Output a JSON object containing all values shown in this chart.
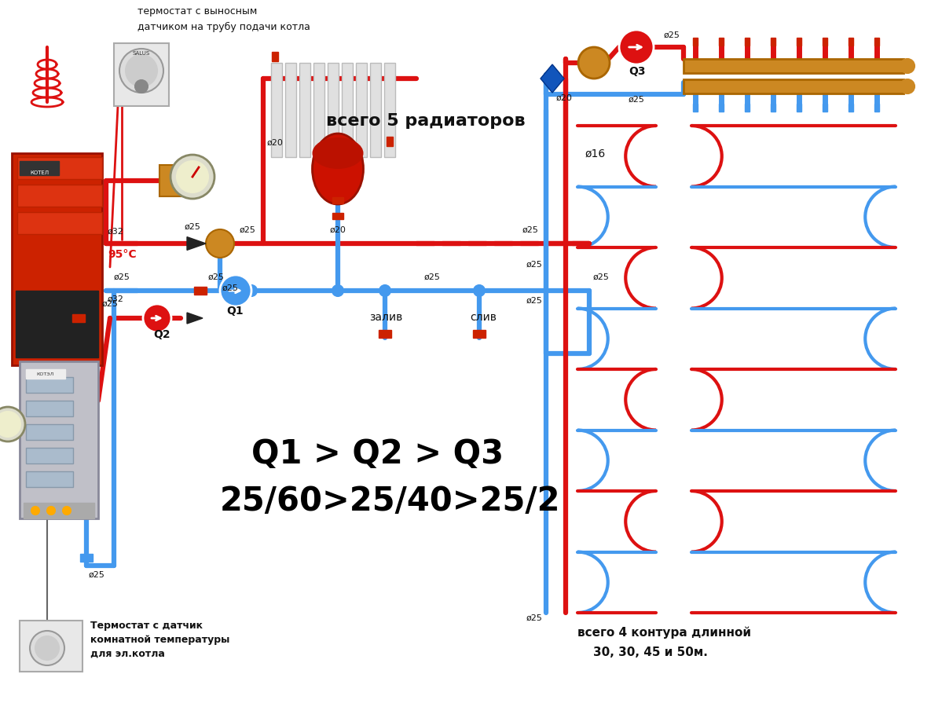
{
  "bg_color": "#ffffff",
  "R": "#dd1111",
  "B": "#4499ee",
  "title1": "Q1 > Q2 > Q3",
  "title2": "25/60>25/40>25/2",
  "lbl_rad": "всего 5 радиаторов",
  "lbl_cont1": "всего 4 контура длинной",
  "lbl_cont2": "30, 30, 45 и 50м.",
  "lbl_th_top1": "термостат с выносным",
  "lbl_th_top2": "датчиком на трубу подачи котла",
  "lbl_th_bot1": "Термостат с датчик",
  "lbl_th_bot2": "комнатной температуры",
  "lbl_th_bot3": "для эл.котла",
  "lbl_95": "95°C",
  "lbl_Q1": "Q1",
  "lbl_Q2": "Q2",
  "lbl_Q3": "Q3",
  "lbl_zaliv": "залив",
  "lbl_sliv": "слив",
  "lbl_16": "ø16",
  "figsize": [
    11.99,
    9.0
  ],
  "dpi": 100
}
